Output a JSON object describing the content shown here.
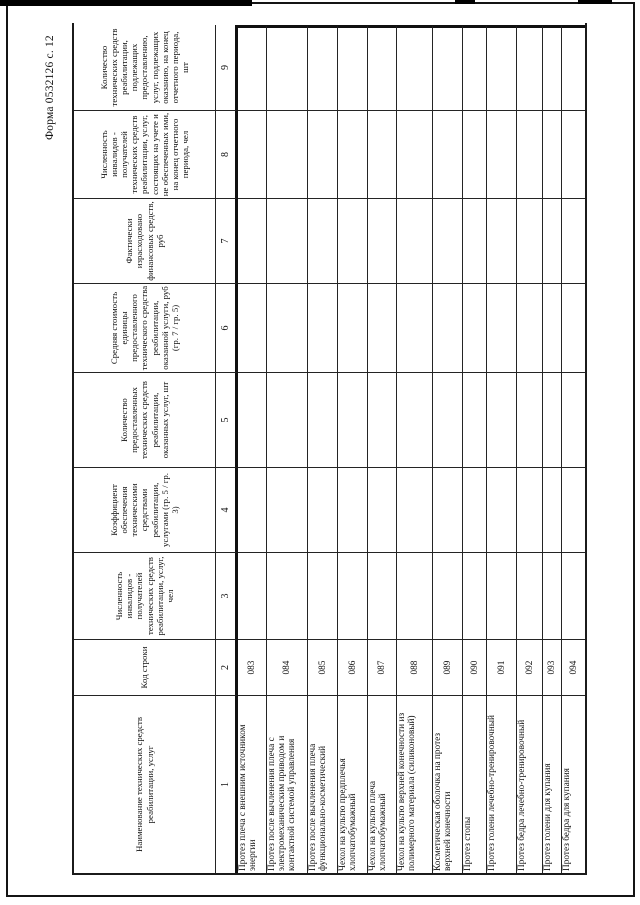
{
  "page": {
    "form_label": "Форма 0532126 с. 12"
  },
  "table": {
    "columns": [
      {
        "num": "1",
        "title": "Наименование технических средств реабилитации, услуг"
      },
      {
        "num": "2",
        "title": "Код строки"
      },
      {
        "num": "3",
        "title": "Численность инвалидов - получателей технических средств реабилитации, услуг, чел"
      },
      {
        "num": "4",
        "title": "Коэффициент обеспечения техническими средствами реабилитации, услугами (гр. 5 / гр. 3)"
      },
      {
        "num": "5",
        "title": "Количество предоставленных технических средств реабилитации, оказанных услуг, шт"
      },
      {
        "num": "6",
        "title": "Средняя стоимость единицы предоставленного технического средства реабилитации, оказанной услуги, руб (гр. 7 / гр. 5)"
      },
      {
        "num": "7",
        "title": "Фактически израсходовано финансовых средств, руб"
      },
      {
        "num": "8",
        "title": "Численность инвалидов - получателей технических средств реабилитации, услуг, состоящих на учете и не обеспеченных ими, на конец отчетного периода, чел"
      },
      {
        "num": "9",
        "title": "Количество технических средств реабилитации, подлежащих предоставлению, услуг, подлежащих оказанию, на конец отчетного периода, шт"
      }
    ],
    "rows": [
      {
        "code": "083",
        "name": "Протез плеча с внешним источником энергии",
        "values": [
          "",
          "",
          "",
          "",
          "",
          "",
          ""
        ]
      },
      {
        "code": "084",
        "name": "Протез после вычленения плеча с электромеханическим приводом и контактной системой управления",
        "values": [
          "",
          "",
          "",
          "",
          "",
          "",
          ""
        ]
      },
      {
        "code": "085",
        "name": "Протез после вычленения плеча функционально-косметический",
        "values": [
          "",
          "",
          "",
          "",
          "",
          "",
          ""
        ]
      },
      {
        "code": "086",
        "name": "Чехол на культю предплечья хлопчатобумажный",
        "values": [
          "",
          "",
          "",
          "",
          "",
          "",
          ""
        ]
      },
      {
        "code": "087",
        "name": "Чехол на культю плеча хлопчатобумажный",
        "values": [
          "",
          "",
          "",
          "",
          "",
          "",
          ""
        ]
      },
      {
        "code": "088",
        "name": "Чехол на культю верхней конечности из полимерного материала (силиконовый)",
        "values": [
          "",
          "",
          "",
          "",
          "",
          "",
          ""
        ]
      },
      {
        "code": "089",
        "name": "Косметическая оболочка на протез верхней конечности",
        "values": [
          "",
          "",
          "",
          "",
          "",
          "",
          ""
        ]
      },
      {
        "code": "090",
        "name": "Протез стопы",
        "values": [
          "",
          "",
          "",
          "",
          "",
          "",
          ""
        ]
      },
      {
        "code": "091",
        "name": "Протез голени лечебно-тренировочный",
        "values": [
          "",
          "",
          "",
          "",
          "",
          "",
          ""
        ]
      },
      {
        "code": "092",
        "name": "Протез бедра лечебно-тренировочный",
        "values": [
          "",
          "",
          "",
          "",
          "",
          "",
          ""
        ]
      },
      {
        "code": "093",
        "name": "Протез голени для купания",
        "values": [
          "",
          "",
          "",
          "",
          "",
          "",
          ""
        ]
      },
      {
        "code": "094",
        "name": "Протез бедра для купания",
        "values": [
          "",
          "",
          "",
          "",
          "",
          "",
          ""
        ]
      }
    ]
  }
}
